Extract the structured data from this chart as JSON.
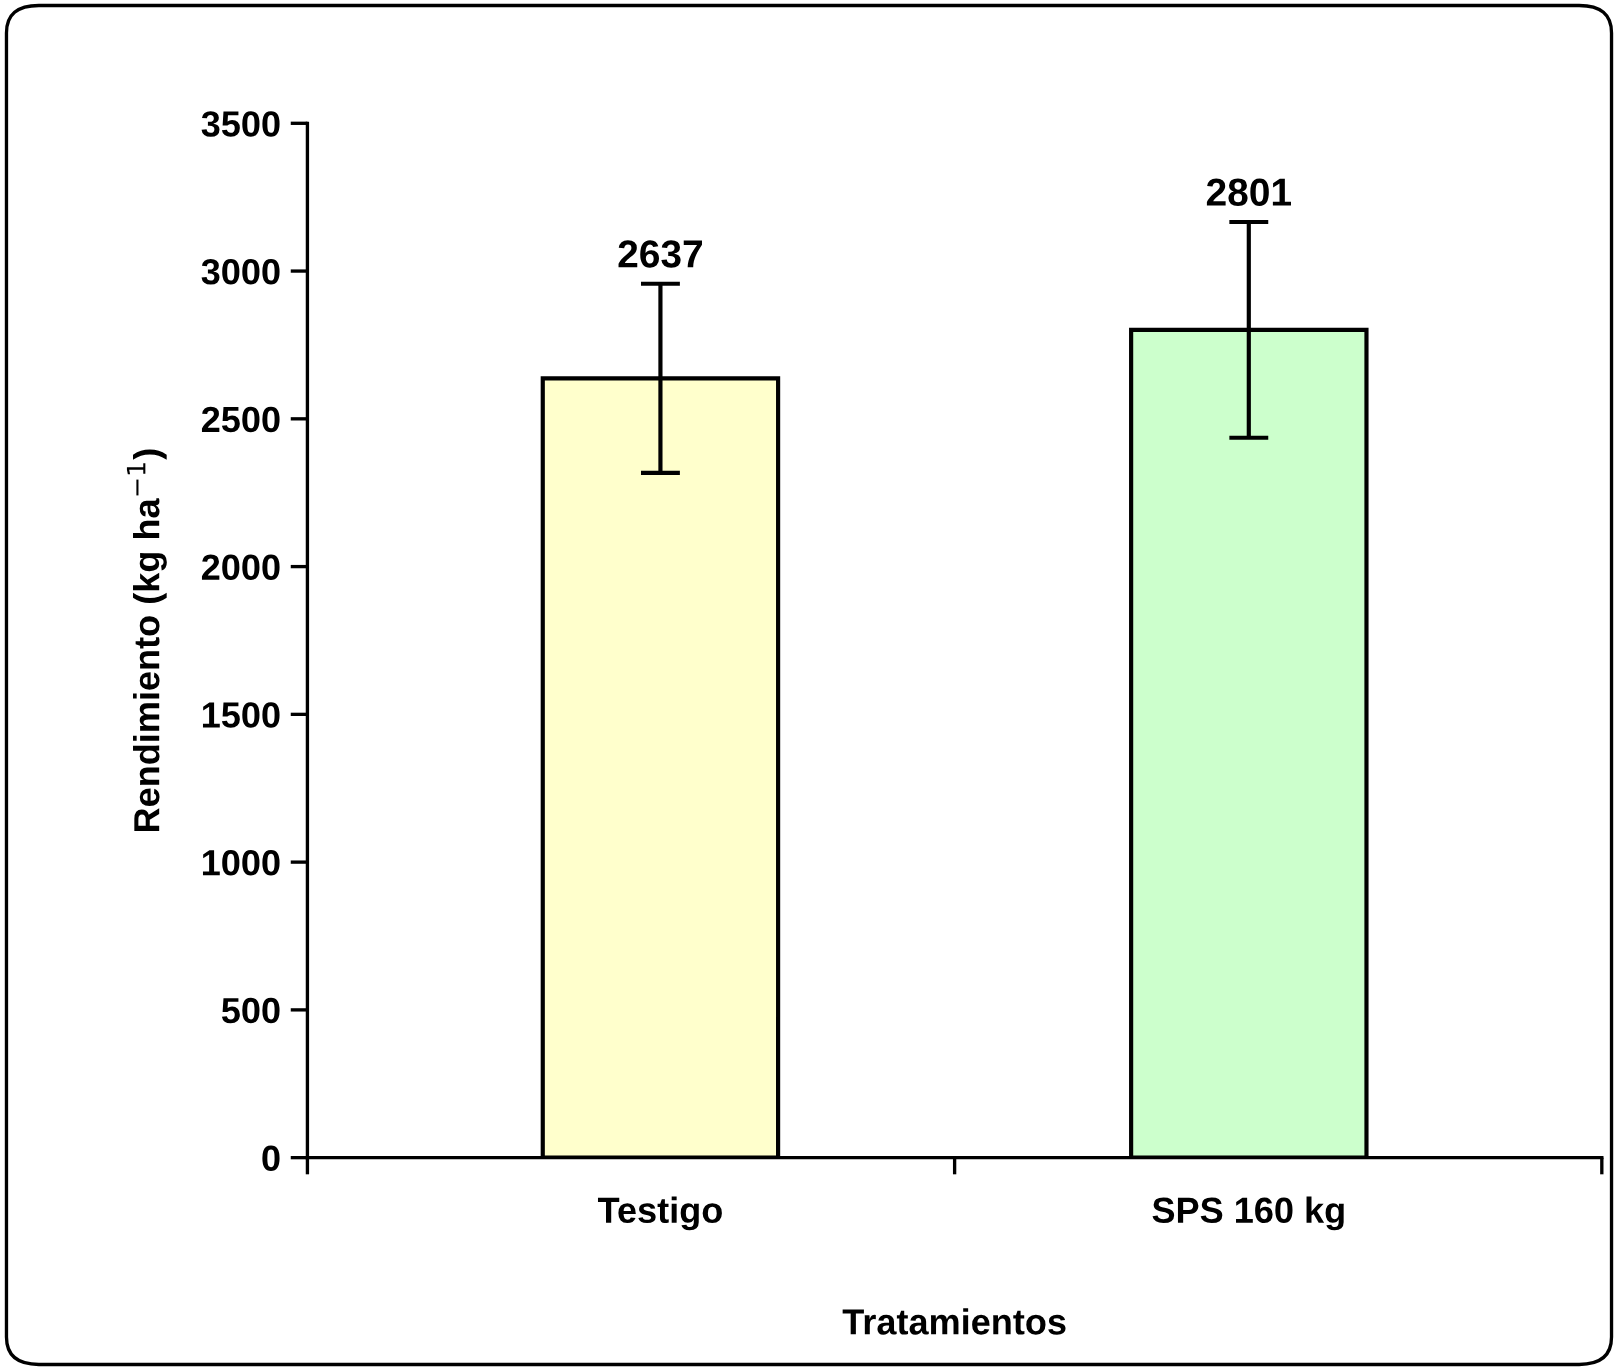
{
  "chart_data": {
    "type": "bar",
    "xlabel": "Tratamientos",
    "ylabel": "Rendimiento (kg ha$^{−1}$)",
    "categories": [
      "Testigo",
      "SPS 160 kg"
    ],
    "values": [
      2637,
      2801
    ],
    "colors": [
      "#ffffcc",
      "#ccffcc"
    ],
    "errors": [
      320,
      365
    ],
    "data_labels": true,
    "ylim": [
      0,
      3500
    ],
    "yticks": [
      0,
      500,
      1000,
      1500,
      2000,
      2500,
      3000,
      3500
    ],
    "grid": false,
    "legend": false
  }
}
